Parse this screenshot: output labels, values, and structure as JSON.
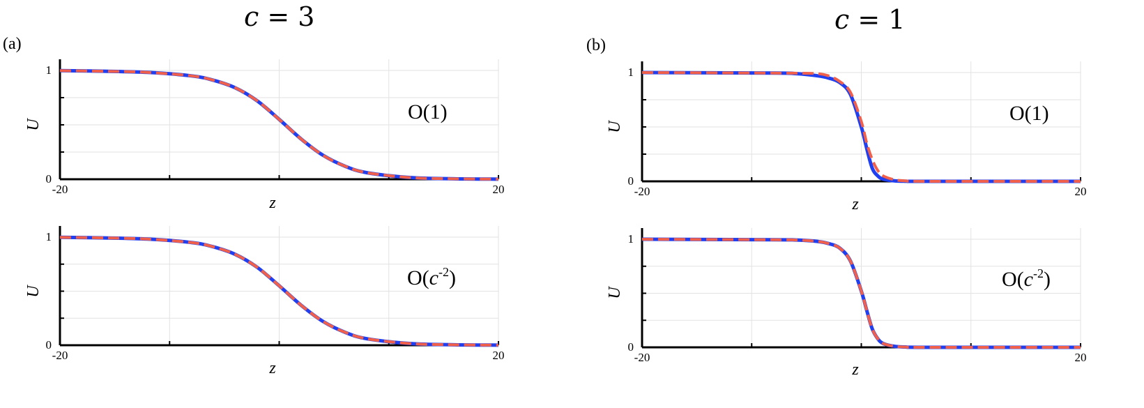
{
  "columns": [
    {
      "title_var": "c",
      "title_eq": " = 3",
      "label": "(a)"
    },
    {
      "title_var": "c",
      "title_eq": " = 1",
      "label": "(b)"
    }
  ],
  "chart_data": [
    {
      "type": "line",
      "panel": "(a) top",
      "order_label": "O(1)",
      "xlabel": "z",
      "ylabel": "U",
      "xlim": [
        -20,
        20
      ],
      "ylim": [
        0,
        1
      ],
      "xtick_labels": [
        "-20",
        "20"
      ],
      "ytick_labels": [
        "0",
        "1"
      ],
      "grid": true,
      "x": [
        -20,
        -16,
        -12,
        -8,
        -6,
        -4,
        -2,
        0,
        2,
        4,
        6,
        8,
        12,
        16,
        20
      ],
      "series": [
        {
          "role": "solid",
          "color": "#1f3ff0",
          "values": [
            0.998,
            0.993,
            0.982,
            0.95,
            0.91,
            0.84,
            0.72,
            0.55,
            0.37,
            0.22,
            0.12,
            0.06,
            0.015,
            0.004,
            0.001
          ]
        },
        {
          "role": "dashed",
          "color": "#f0604a",
          "values": [
            0.998,
            0.993,
            0.982,
            0.95,
            0.91,
            0.84,
            0.72,
            0.55,
            0.37,
            0.22,
            0.12,
            0.06,
            0.015,
            0.004,
            0.001
          ]
        }
      ]
    },
    {
      "type": "line",
      "panel": "(a) bottom",
      "order_label": "O(c⁻²)",
      "order_base": "O(",
      "order_var": "c",
      "order_exp": "-2",
      "order_close": ")",
      "xlabel": "z",
      "ylabel": "U",
      "xlim": [
        -20,
        20
      ],
      "ylim": [
        0,
        1
      ],
      "xtick_labels": [
        "-20",
        "20"
      ],
      "ytick_labels": [
        "0",
        "1"
      ],
      "grid": true,
      "x": [
        -20,
        -16,
        -12,
        -8,
        -6,
        -4,
        -2,
        0,
        2,
        4,
        6,
        8,
        12,
        16,
        20
      ],
      "series": [
        {
          "role": "solid",
          "color": "#1f3ff0",
          "values": [
            0.998,
            0.993,
            0.982,
            0.95,
            0.91,
            0.84,
            0.72,
            0.55,
            0.37,
            0.22,
            0.12,
            0.06,
            0.015,
            0.004,
            0.001
          ]
        },
        {
          "role": "dashed",
          "color": "#f0604a",
          "values": [
            0.998,
            0.993,
            0.982,
            0.95,
            0.91,
            0.84,
            0.72,
            0.55,
            0.37,
            0.22,
            0.12,
            0.06,
            0.015,
            0.004,
            0.001
          ]
        }
      ]
    },
    {
      "type": "line",
      "panel": "(b) top",
      "order_label": "O(1)",
      "xlabel": "z",
      "ylabel": "U",
      "xlim": [
        -20,
        20
      ],
      "ylim": [
        0,
        1
      ],
      "xtick_labels": [
        "-20",
        "20"
      ],
      "ytick_labels": [
        "0",
        "1"
      ],
      "grid": true,
      "x": [
        -20,
        -8,
        -6,
        -4,
        -3,
        -2,
        -1,
        0,
        0.5,
        1,
        1.5,
        2,
        3,
        4,
        6,
        20
      ],
      "series": [
        {
          "role": "solid",
          "color": "#1f3ff0",
          "values": [
            1.0,
            0.995,
            0.99,
            0.97,
            0.95,
            0.91,
            0.8,
            0.5,
            0.3,
            0.12,
            0.05,
            0.02,
            0.005,
            0.001,
            0.0,
            0.0
          ]
        },
        {
          "role": "dashed",
          "color": "#f0604a",
          "values": [
            1.0,
            0.995,
            0.994,
            0.99,
            0.97,
            0.92,
            0.82,
            0.55,
            0.35,
            0.2,
            0.1,
            0.05,
            0.015,
            0.005,
            0.0,
            0.0
          ]
        }
      ]
    },
    {
      "type": "line",
      "panel": "(b) bottom",
      "order_label": "O(c⁻²)",
      "order_base": "O(",
      "order_var": "c",
      "order_exp": "-2",
      "order_close": ")",
      "xlabel": "z",
      "ylabel": "U",
      "xlim": [
        -20,
        20
      ],
      "ylim": [
        0,
        1
      ],
      "xtick_labels": [
        "-20",
        "20"
      ],
      "ytick_labels": [
        "0",
        "1"
      ],
      "grid": true,
      "x": [
        -20,
        -8,
        -6,
        -4,
        -3,
        -2,
        -1,
        0,
        0.5,
        1,
        1.5,
        2,
        3,
        4,
        6,
        20
      ],
      "series": [
        {
          "role": "solid",
          "color": "#1f3ff0",
          "values": [
            1.0,
            0.995,
            0.993,
            0.98,
            0.96,
            0.92,
            0.8,
            0.52,
            0.34,
            0.17,
            0.08,
            0.035,
            0.01,
            0.003,
            0.0,
            0.0
          ]
        },
        {
          "role": "dashed",
          "color": "#f0604a",
          "values": [
            1.0,
            0.995,
            0.993,
            0.98,
            0.96,
            0.92,
            0.8,
            0.52,
            0.34,
            0.17,
            0.08,
            0.035,
            0.01,
            0.003,
            0.0,
            0.0
          ]
        }
      ]
    }
  ]
}
